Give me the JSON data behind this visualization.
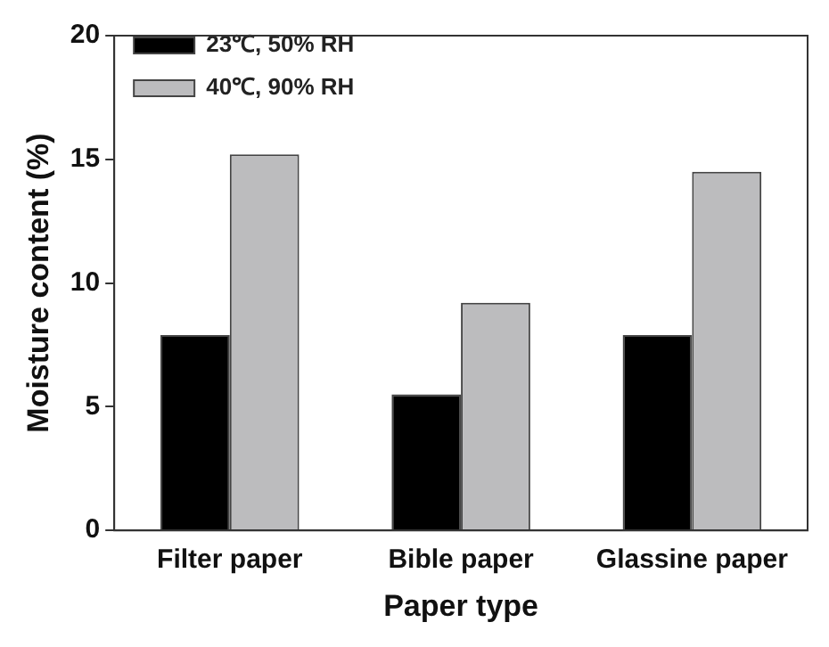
{
  "chart_data": {
    "type": "bar",
    "xlabel": "Paper type",
    "ylabel": "Moisture content (%)",
    "categories": [
      "Filter paper",
      "Bible paper",
      "Glassine paper"
    ],
    "series": [
      {
        "name": "23℃, 50% RH",
        "color": "#000000",
        "values": [
          7.9,
          5.5,
          7.9
        ]
      },
      {
        "name": "40℃, 90% RH",
        "color": "#bcbcbe",
        "values": [
          15.2,
          9.2,
          14.5
        ]
      }
    ],
    "ylim": [
      0,
      20
    ],
    "yticks": [
      0,
      5,
      10,
      15,
      20
    ],
    "grid": false,
    "legend": "top left"
  }
}
